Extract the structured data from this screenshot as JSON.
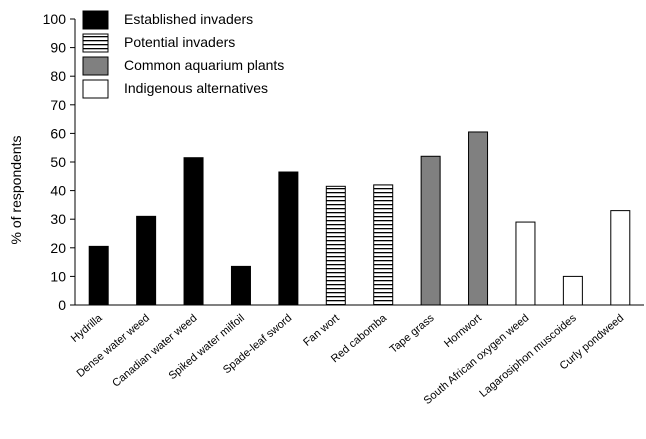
{
  "chart_data": {
    "type": "bar",
    "ylabel": "% of respondents",
    "xlabel": "",
    "title": "",
    "ylim": [
      0,
      100
    ],
    "yticks": [
      0,
      10,
      20,
      30,
      40,
      50,
      60,
      70,
      80,
      90,
      100
    ],
    "grid": false,
    "legend_placement": "top-left",
    "categories": [
      "Hydrilla",
      "Dense water weed",
      "Canadian water weed",
      "Spiked water milfoil",
      "Spade-leaf sword",
      "Fan wort",
      "Red cabomba",
      "Tape grass",
      "Hornwort",
      "South African oxygen weed",
      "Lagarosiphon muscoides",
      "Curly pondweed"
    ],
    "values": [
      20.5,
      31,
      51.5,
      13.5,
      46.5,
      41.5,
      42,
      52,
      60.5,
      29,
      10,
      33
    ],
    "groups": [
      0,
      0,
      0,
      0,
      0,
      1,
      1,
      2,
      2,
      3,
      3,
      3
    ],
    "legend": [
      {
        "name": "Established invaders",
        "pattern": "solid-black"
      },
      {
        "name": "Potential invaders",
        "pattern": "horizontal-stripes"
      },
      {
        "name": "Common aquarium plants",
        "pattern": "solid-gray"
      },
      {
        "name": "Indigenous alternatives",
        "pattern": "white"
      }
    ],
    "colors": {
      "established": "#000000",
      "potential_fill": "#ffffff",
      "potential_stripe": "#000000",
      "common": "#808080",
      "indigenous": "#ffffff",
      "axis": "#000000"
    }
  }
}
